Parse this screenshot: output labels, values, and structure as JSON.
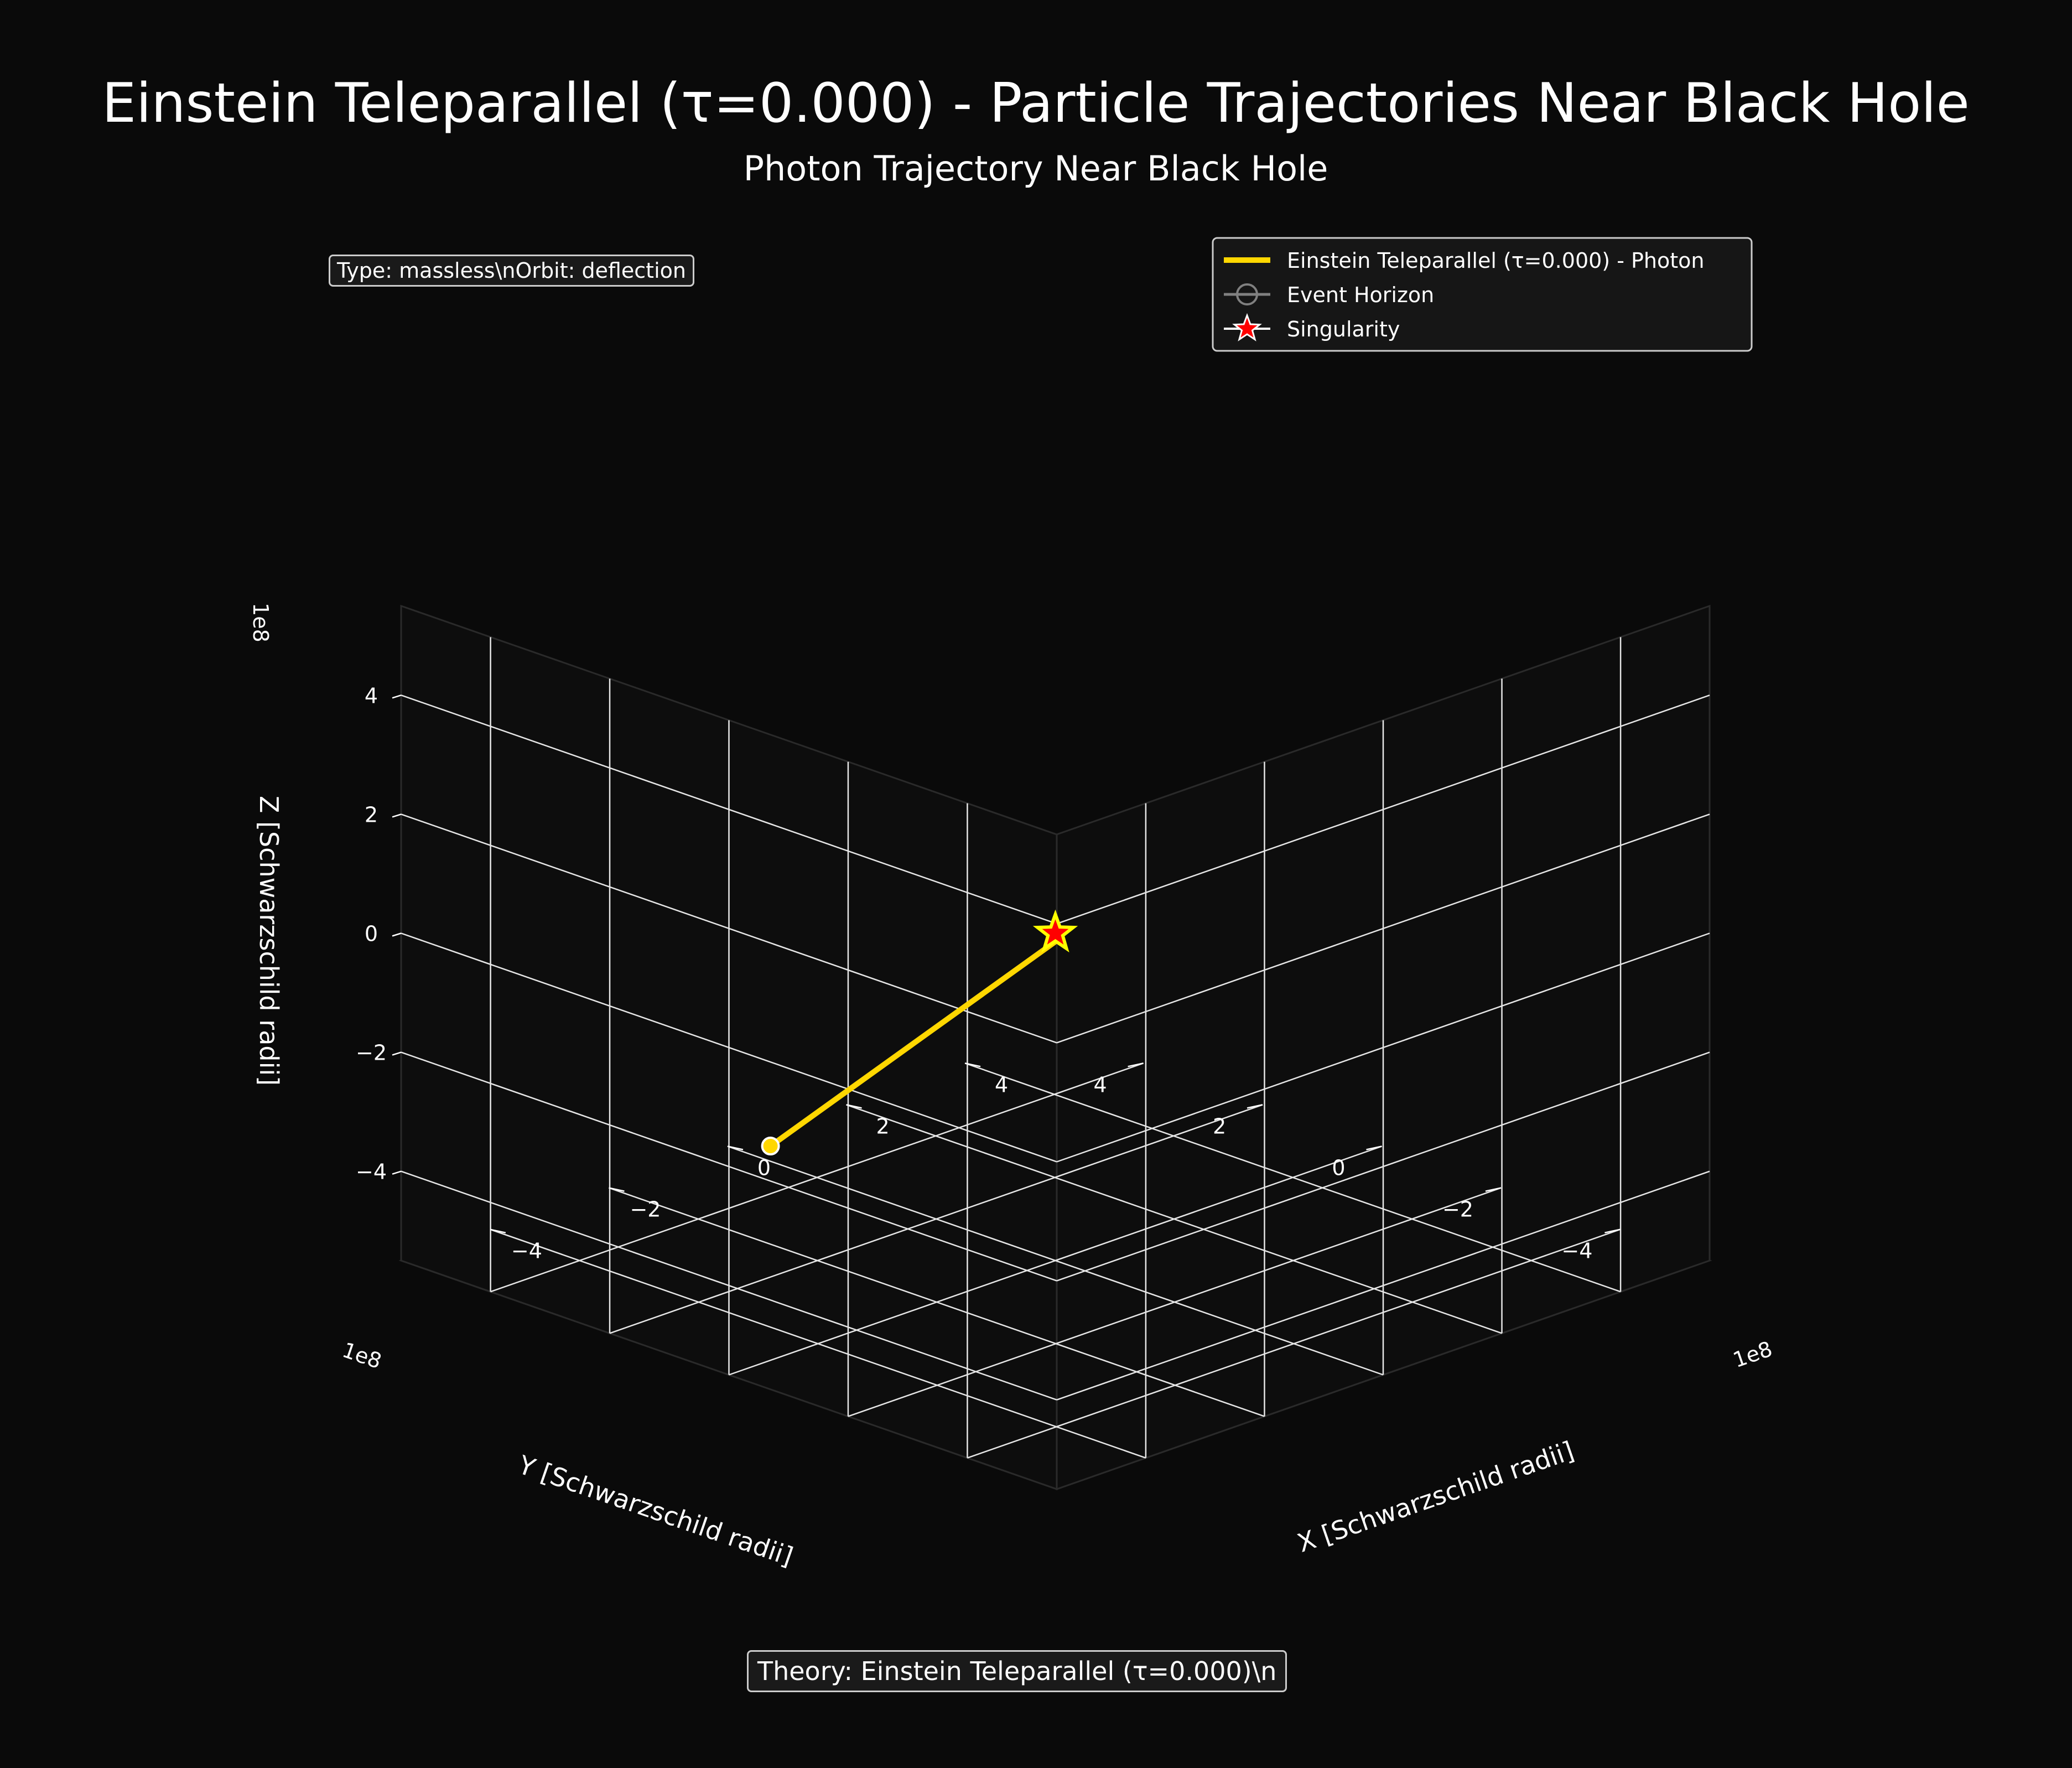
{
  "figure": {
    "title": "Einstein Teleparallel (τ=0.000) - Particle Trajectories Near Black Hole",
    "subtitle": "Photon Trajectory Near Black Hole",
    "info_box": "Type: massless\\nOrbit: deflection",
    "theory_box": "Theory: Einstein Teleparallel (τ=0.000)\\n"
  },
  "chart_data": {
    "type": "line",
    "projection": "3d",
    "background": "#0a0a0a",
    "grid": true,
    "legend_placement": "top-right",
    "xlabel": "X [Schwarzschild radii]",
    "ylabel": "Y [Schwarzschild radii]",
    "zlabel": "Z [Schwarzschild radii]",
    "axis_multiplier": "1e8",
    "xlim": [
      -5.5,
      5.5
    ],
    "ylim": [
      -5.5,
      5.5
    ],
    "zlim": [
      -5.5,
      5.5
    ],
    "xticks": [
      -4,
      -2,
      0,
      2,
      4
    ],
    "yticks": [
      -4,
      -2,
      0,
      2,
      4
    ],
    "zticks": [
      -4,
      -2,
      0,
      2,
      4
    ],
    "xtick_labels": [
      "−4",
      "−2",
      "0",
      "2",
      "4"
    ],
    "ytick_labels": [
      "−4",
      "−2",
      "0",
      "2",
      "4"
    ],
    "ztick_labels": [
      "−4",
      "−2",
      "0",
      "2",
      "4"
    ],
    "series": [
      {
        "name": "Einstein Teleparallel (τ=0.000) - Photon",
        "color": "#ffd700",
        "x": [
          0,
          -0.2
        ],
        "y": [
          -4.8,
          -0.2
        ],
        "z": [
          -1.9,
          0
        ]
      }
    ],
    "legend": [
      {
        "label": "Einstein Teleparallel (τ=0.000) - Photon",
        "style": "line",
        "color": "#ffd700"
      },
      {
        "label": "Event Horizon",
        "style": "circle",
        "color": "#808080"
      },
      {
        "label": "Singularity",
        "style": "star",
        "color": "#ff0000"
      }
    ],
    "singularity": {
      "x": 0,
      "y": 0,
      "z": 0,
      "color": "#ff0000",
      "edge_color": "#ffff00"
    },
    "start_point": {
      "x": 0,
      "y": -4.8,
      "z": -1.9,
      "color": "#ffd700"
    }
  }
}
